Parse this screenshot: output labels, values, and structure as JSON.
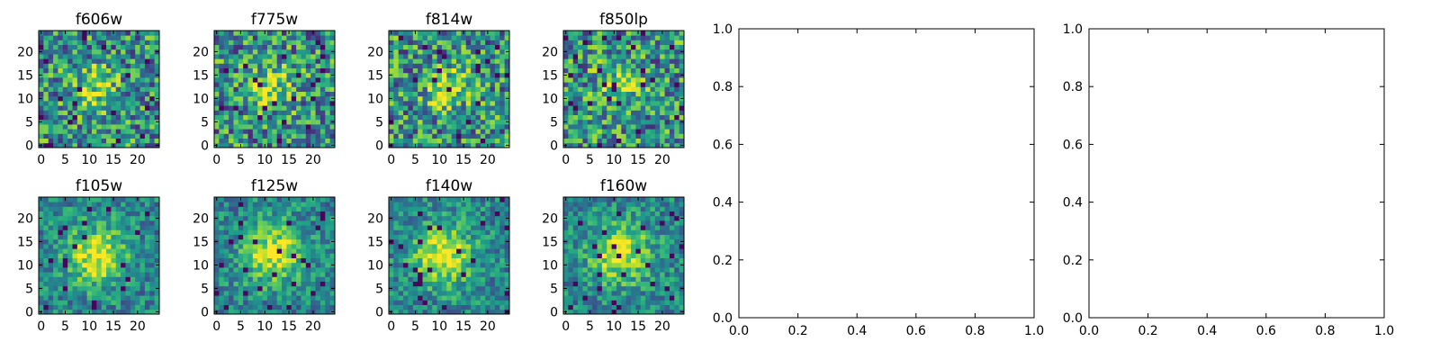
{
  "chart_data": [
    {
      "type": "heatmap",
      "title": "f606w",
      "xticks": [
        "0",
        "5",
        "10",
        "15",
        "20"
      ],
      "yticks": [
        "0",
        "5",
        "10",
        "15",
        "20"
      ],
      "grid_size": [
        25,
        25
      ],
      "colormap": "viridis"
    },
    {
      "type": "heatmap",
      "title": "f775w",
      "xticks": [
        "0",
        "5",
        "10",
        "15",
        "20"
      ],
      "yticks": [
        "0",
        "5",
        "10",
        "15",
        "20"
      ],
      "grid_size": [
        25,
        25
      ],
      "colormap": "viridis"
    },
    {
      "type": "heatmap",
      "title": "f814w",
      "xticks": [
        "0",
        "5",
        "10",
        "15",
        "20"
      ],
      "yticks": [
        "0",
        "5",
        "10",
        "15",
        "20"
      ],
      "grid_size": [
        25,
        25
      ],
      "colormap": "viridis"
    },
    {
      "type": "heatmap",
      "title": "f850lp",
      "xticks": [
        "0",
        "5",
        "10",
        "15",
        "20"
      ],
      "yticks": [
        "0",
        "5",
        "10",
        "15",
        "20"
      ],
      "grid_size": [
        25,
        25
      ],
      "colormap": "viridis"
    },
    {
      "type": "heatmap",
      "title": "f105w",
      "xticks": [
        "0",
        "5",
        "10",
        "15",
        "20"
      ],
      "yticks": [
        "0",
        "5",
        "10",
        "15",
        "20"
      ],
      "grid_size": [
        25,
        25
      ],
      "colormap": "viridis"
    },
    {
      "type": "heatmap",
      "title": "f125w",
      "xticks": [
        "0",
        "5",
        "10",
        "15",
        "20"
      ],
      "yticks": [
        "0",
        "5",
        "10",
        "15",
        "20"
      ],
      "grid_size": [
        25,
        25
      ],
      "colormap": "viridis"
    },
    {
      "type": "heatmap",
      "title": "f140w",
      "xticks": [
        "0",
        "5",
        "10",
        "15",
        "20"
      ],
      "yticks": [
        "0",
        "5",
        "10",
        "15",
        "20"
      ],
      "grid_size": [
        25,
        25
      ],
      "colormap": "viridis"
    },
    {
      "type": "heatmap",
      "title": "f160w",
      "xticks": [
        "0",
        "5",
        "10",
        "15",
        "20"
      ],
      "yticks": [
        "0",
        "5",
        "10",
        "15",
        "20"
      ],
      "grid_size": [
        25,
        25
      ],
      "colormap": "viridis"
    },
    {
      "type": "scatter",
      "title": "",
      "xlim": [
        0,
        1
      ],
      "ylim": [
        0,
        1
      ],
      "xticks": [
        "0.0",
        "0.2",
        "0.4",
        "0.6",
        "0.8",
        "1.0"
      ],
      "yticks": [
        "0.0",
        "0.2",
        "0.4",
        "0.6",
        "0.8",
        "1.0"
      ],
      "series": []
    },
    {
      "type": "scatter",
      "title": "",
      "xlim": [
        0,
        1
      ],
      "ylim": [
        0,
        1
      ],
      "xticks": [
        "0.0",
        "0.2",
        "0.4",
        "0.6",
        "0.8",
        "1.0"
      ],
      "yticks": [
        "0.0",
        "0.2",
        "0.4",
        "0.6",
        "0.8",
        "1.0"
      ],
      "series": []
    }
  ]
}
